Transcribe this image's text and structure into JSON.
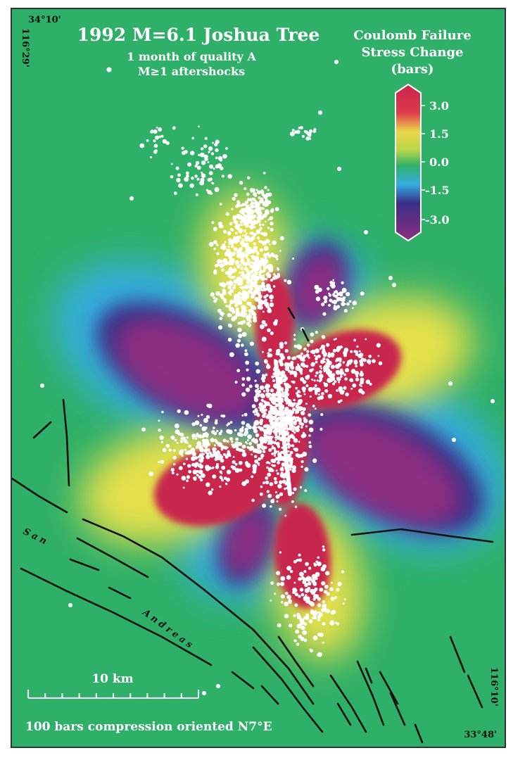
{
  "title": "1992  M=6.1 Joshua Tree",
  "subtitle_line1": "1 month of quality A",
  "subtitle_line2": "M≥1 aftershocks",
  "legend": {
    "title_line1": "Coulomb Failure",
    "title_line2": "Stress Change",
    "title_line3": "(bars)",
    "ticks": [
      "3.0",
      "1.5",
      "0.0",
      "-1.5",
      "-3.0"
    ],
    "colors": [
      "#c8264e",
      "#e8e04a",
      "#2fb068",
      "#35aee0",
      "#3a2e86",
      "#8c2f82"
    ]
  },
  "corners": {
    "top_left_lat": "34°10'",
    "top_left_lon": "116°29'",
    "bottom_right_lon": "116°10'",
    "bottom_right_lat": "33°48'"
  },
  "fault_label_1": "San",
  "fault_label_2": "Andreas",
  "scale_label": "10 km",
  "footer": "100 bars compression oriented N7°E",
  "background_color": "#2fb068",
  "fault_color": "#111111",
  "aftershock_color": "#ffffff"
}
